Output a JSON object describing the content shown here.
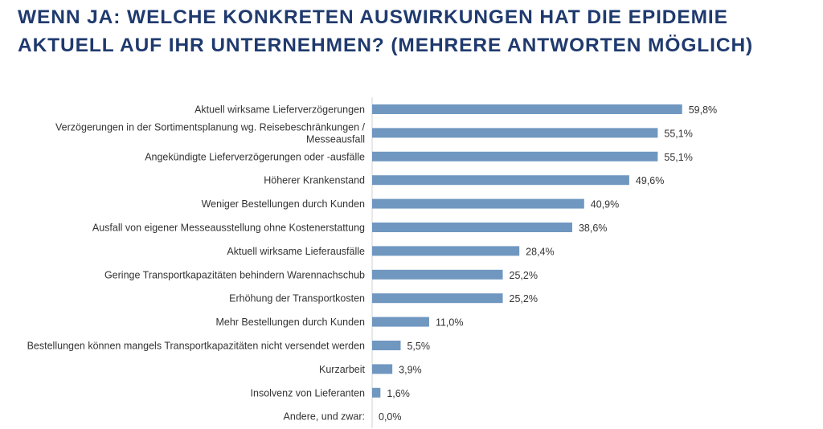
{
  "title": {
    "line1": "WENN JA: WELCHE KONKRETEN AUSWIRKUNGEN HAT DIE EPIDEMIE",
    "line2": "AKTUELL AUF IHR UNTERNEHMEN? (MEHRERE ANTWORTEN MÖGLICH)"
  },
  "chart_data": {
    "type": "bar",
    "orientation": "horizontal",
    "categories": [
      [
        "Aktuell wirksame Lieferverzögerungen"
      ],
      [
        "Verzögerungen in der Sortimentsplanung wg. Reisebeschränkungen /",
        "Messeausfall"
      ],
      [
        "Angekündigte Lieferverzögerungen oder -ausfälle"
      ],
      [
        "Höherer Krankenstand"
      ],
      [
        "Weniger Bestellungen durch Kunden"
      ],
      [
        "Ausfall von eigener Messeausstellung ohne Kostenerstattung"
      ],
      [
        "Aktuell wirksame Lieferausfälle"
      ],
      [
        "Geringe Transportkapazitäten behindern Warennachschub"
      ],
      [
        "Erhöhung der Transportkosten"
      ],
      [
        "Mehr Bestellungen durch Kunden"
      ],
      [
        "Bestellungen können mangels Transportkapazitäten nicht versendet werden"
      ],
      [
        "Kurzarbeit"
      ],
      [
        "Insolvenz von Lieferanten"
      ],
      [
        "Andere, und zwar:"
      ]
    ],
    "values": [
      59.8,
      55.1,
      55.1,
      49.6,
      40.9,
      38.6,
      28.4,
      25.2,
      25.2,
      11.0,
      5.5,
      3.9,
      1.6,
      0.0
    ],
    "value_labels": [
      "59,8%",
      "55,1%",
      "55,1%",
      "49,6%",
      "40,9%",
      "38,6%",
      "28,4%",
      "25,2%",
      "25,2%",
      "11,0%",
      "5,5%",
      "3,9%",
      "1,6%",
      "0,0%"
    ],
    "xlim": [
      0,
      60
    ],
    "grid": false,
    "legend": "none",
    "colors": {
      "bar": "#6f97c0",
      "title": "#1f3a6e",
      "text": "#333333"
    }
  }
}
